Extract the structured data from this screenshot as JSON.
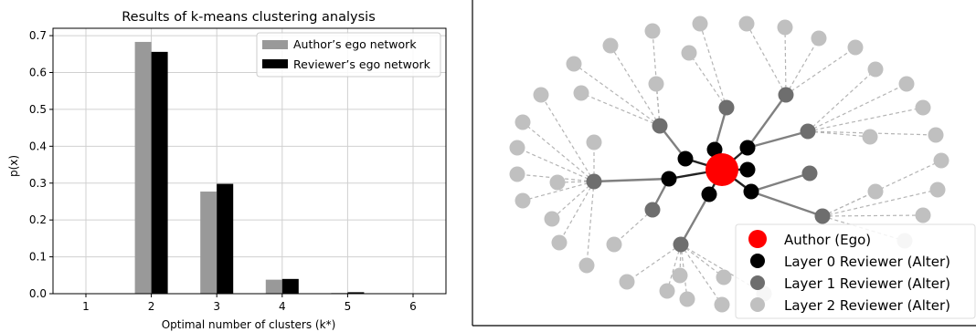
{
  "chart_data": {
    "type": "bar",
    "title": "Results of k-means clustering analysis",
    "xlabel": "Optimal number of clusters (k*)",
    "ylabel": "p(x)",
    "categories": [
      "1",
      "2",
      "3",
      "4",
      "5",
      "6"
    ],
    "ylim": [
      0,
      0.72
    ],
    "yticks": [
      "0.0",
      "0.1",
      "0.2",
      "0.3",
      "0.4",
      "0.5",
      "0.6",
      "0.7"
    ],
    "grid": true,
    "legend_position": "top-right",
    "series": [
      {
        "name": "Author’s ego network",
        "color": "#999999",
        "values": [
          0,
          0.683,
          0.277,
          0.038,
          0.002,
          0
        ]
      },
      {
        "name": "Reviewer’s ego network",
        "color": "#000000",
        "values": [
          0,
          0.656,
          0.298,
          0.04,
          0.004,
          0
        ]
      }
    ]
  },
  "network": {
    "legend": [
      {
        "label": "Author (Ego)",
        "color": "#ff0000"
      },
      {
        "label": "Layer 0 Reviewer (Alter)",
        "color": "#000000"
      },
      {
        "label": "Layer 1 Reviewer (Alter)",
        "color": "#6e6e6e"
      },
      {
        "label": "Layer 2 Reviewer (Alter)",
        "color": "#c0c0c0"
      }
    ]
  }
}
